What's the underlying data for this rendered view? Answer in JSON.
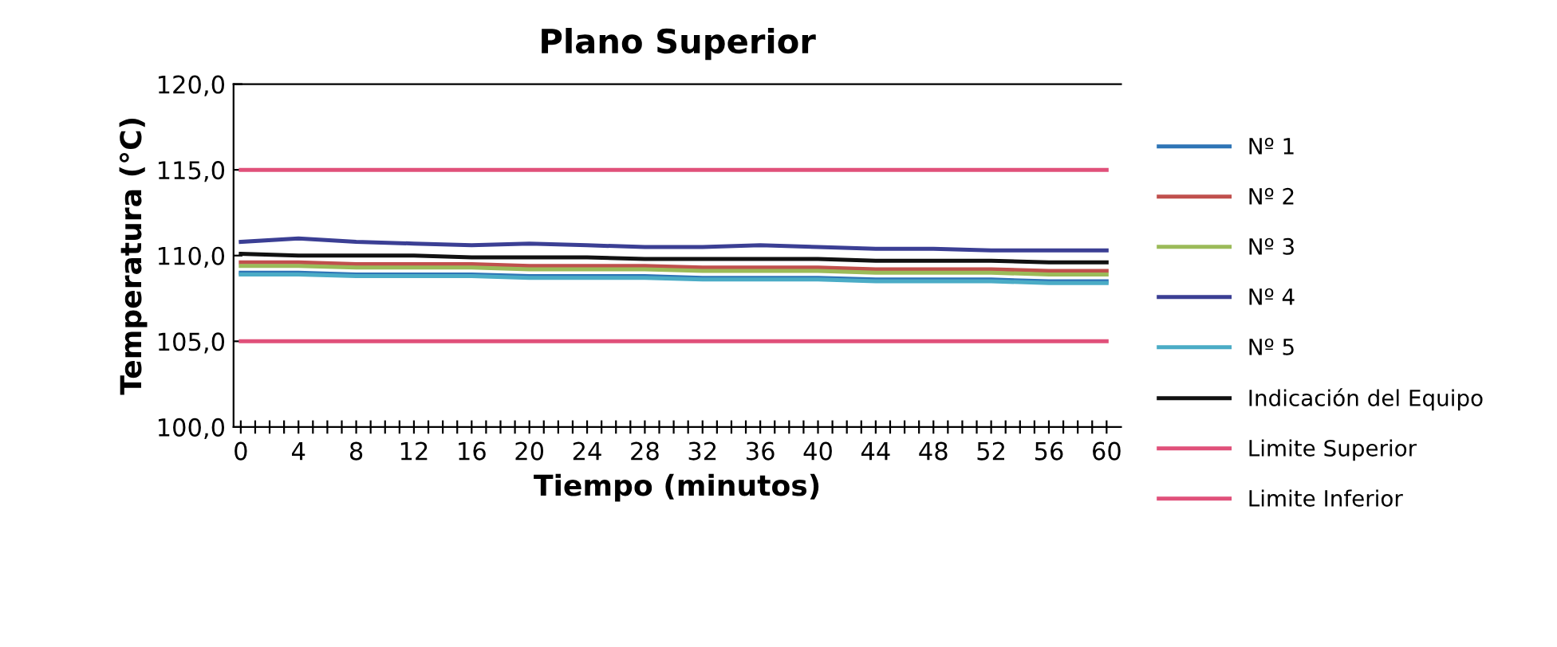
{
  "chart_data": {
    "type": "line",
    "title": "Plano Superior",
    "xlabel": "Tiempo (minutos)",
    "ylabel": "Temperatura (°C)",
    "x": [
      0,
      4,
      8,
      12,
      16,
      20,
      24,
      28,
      32,
      36,
      40,
      44,
      48,
      52,
      56,
      60
    ],
    "series": [
      {
        "name": "Nº 1",
        "color": "#2e75b6",
        "values": [
          109.0,
          109.0,
          108.9,
          108.9,
          108.9,
          108.8,
          108.8,
          108.8,
          108.7,
          108.7,
          108.7,
          108.6,
          108.6,
          108.6,
          108.5,
          108.5
        ]
      },
      {
        "name": "Nº 2",
        "color": "#c0504d",
        "values": [
          109.6,
          109.6,
          109.5,
          109.5,
          109.5,
          109.4,
          109.4,
          109.4,
          109.3,
          109.3,
          109.3,
          109.2,
          109.2,
          109.2,
          109.1,
          109.1
        ]
      },
      {
        "name": "Nº 3",
        "color": "#9bbb59",
        "values": [
          109.4,
          109.4,
          109.3,
          109.3,
          109.3,
          109.2,
          109.2,
          109.2,
          109.1,
          109.1,
          109.1,
          109.0,
          109.0,
          109.0,
          108.9,
          108.9
        ]
      },
      {
        "name": "Nº 4",
        "color": "#3b3f94",
        "values": [
          110.8,
          111.0,
          110.8,
          110.7,
          110.6,
          110.7,
          110.6,
          110.5,
          110.5,
          110.6,
          110.5,
          110.4,
          110.4,
          110.3,
          110.3,
          110.3
        ]
      },
      {
        "name": "Nº 5",
        "color": "#4bacc6",
        "values": [
          108.9,
          108.9,
          108.8,
          108.8,
          108.8,
          108.7,
          108.7,
          108.7,
          108.6,
          108.6,
          108.6,
          108.5,
          108.5,
          108.5,
          108.4,
          108.4
        ]
      },
      {
        "name": "Indicación del Equipo",
        "color": "#111111",
        "values": [
          110.1,
          110.0,
          110.0,
          110.0,
          109.9,
          109.9,
          109.9,
          109.8,
          109.8,
          109.8,
          109.8,
          109.7,
          109.7,
          109.7,
          109.6,
          109.6
        ]
      },
      {
        "name": "Limite Superior",
        "color": "#e0507a",
        "values": [
          115,
          115,
          115,
          115,
          115,
          115,
          115,
          115,
          115,
          115,
          115,
          115,
          115,
          115,
          115,
          115
        ]
      },
      {
        "name": "Limite Inferior",
        "color": "#e0507a",
        "values": [
          105,
          105,
          105,
          105,
          105,
          105,
          105,
          105,
          105,
          105,
          105,
          105,
          105,
          105,
          105,
          105
        ]
      }
    ],
    "xlim": [
      -0.5,
      61
    ],
    "xticks": [
      0,
      {
        "value": 1,
        "label": null
      },
      {
        "value": 2,
        "label": null
      },
      {
        "value": 3,
        "label": null
      },
      4,
      {
        "value": 5,
        "label": null
      },
      {
        "value": 6,
        "label": null
      },
      {
        "value": 7,
        "label": null
      },
      8,
      {
        "value": 9,
        "label": null
      },
      {
        "value": 10,
        "label": null
      },
      {
        "value": 11,
        "label": null
      },
      12,
      {
        "value": 13,
        "label": null
      },
      {
        "value": 14,
        "label": null
      },
      {
        "value": 15,
        "label": null
      },
      16,
      {
        "value": 17,
        "label": null
      },
      {
        "value": 18,
        "label": null
      },
      {
        "value": 19,
        "label": null
      },
      20,
      {
        "value": 21,
        "label": null
      },
      {
        "value": 22,
        "label": null
      },
      {
        "value": 23,
        "label": null
      },
      24,
      {
        "value": 25,
        "label": null
      },
      {
        "value": 26,
        "label": null
      },
      {
        "value": 27,
        "label": null
      },
      28,
      {
        "value": 29,
        "label": null
      },
      {
        "value": 30,
        "label": null
      },
      {
        "value": 31,
        "label": null
      },
      32,
      {
        "value": 33,
        "label": null
      },
      {
        "value": 34,
        "label": null
      },
      {
        "value": 35,
        "label": null
      },
      36,
      {
        "value": 37,
        "label": null
      },
      {
        "value": 38,
        "label": null
      },
      {
        "value": 39,
        "label": null
      },
      40,
      {
        "value": 41,
        "label": null
      },
      {
        "value": 42,
        "label": null
      },
      {
        "value": 43,
        "label": null
      },
      44,
      {
        "value": 45,
        "label": null
      },
      {
        "value": 46,
        "label": null
      },
      {
        "value": 47,
        "label": null
      },
      48,
      {
        "value": 49,
        "label": null
      },
      {
        "value": 50,
        "label": null
      },
      {
        "value": 51,
        "label": null
      },
      52,
      {
        "value": 53,
        "label": null
      },
      {
        "value": 54,
        "label": null
      },
      {
        "value": 55,
        "label": null
      },
      56,
      {
        "value": 57,
        "label": null
      },
      {
        "value": 58,
        "label": null
      },
      {
        "value": 59,
        "label": null
      },
      60
    ],
    "ylim": [
      100,
      120
    ],
    "yticks": [
      {
        "value": 100,
        "label": "100,0"
      },
      {
        "value": 105,
        "label": "105,0"
      },
      {
        "value": 110,
        "label": "110,0"
      },
      {
        "value": 115,
        "label": "115,0"
      },
      {
        "value": 120,
        "label": "120,0"
      }
    ],
    "grid": false,
    "legend": "right",
    "marker": "none",
    "line_style": "solid"
  }
}
